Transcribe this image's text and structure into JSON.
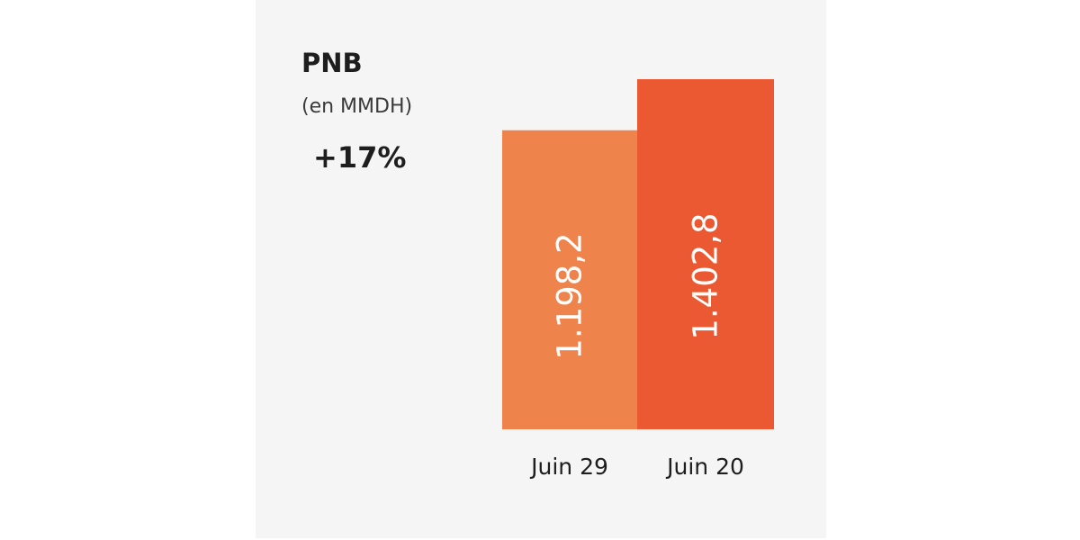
{
  "header": {
    "title": "PNB",
    "unit": "(en MMDH)",
    "growth": "+17%"
  },
  "colors": {
    "background": "#f5f5f5",
    "bar_first": "#ef834c",
    "bar_second": "#ea5932"
  },
  "chart_data": {
    "type": "bar",
    "title": "PNB",
    "subtitle": "(en MMDH)",
    "annotation": "+17%",
    "categories": [
      "Juin 29",
      "Juin 20"
    ],
    "values": [
      1198.2,
      1402.8
    ],
    "value_labels": [
      "1.198,2",
      "1.402,8"
    ],
    "legend": "none",
    "grid": false
  }
}
